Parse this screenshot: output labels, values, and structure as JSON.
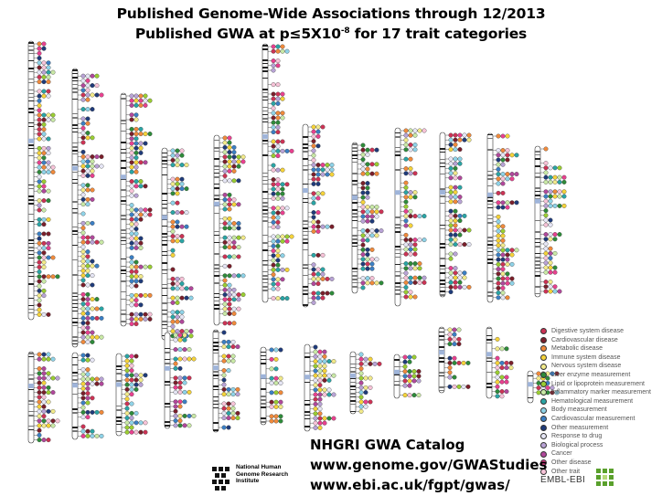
{
  "title_line1": "Published Genome-Wide Associations through 12/2013",
  "title_line2_pre": "Published GWA at p≤5X10",
  "title_line2_sup": "-8",
  "title_line2_post": " for 17 trait categories",
  "legend": [
    {
      "label": "Digestive system disease",
      "color": "#cc3355"
    },
    {
      "label": "Cardiovascular disease",
      "color": "#7a1f2b"
    },
    {
      "label": "Metabolic disease",
      "color": "#f08a3c"
    },
    {
      "label": "Immune system disease",
      "color": "#f5d33a"
    },
    {
      "label": "Nervous system disease",
      "color": "#f2ea8a"
    },
    {
      "label": "Liver enzyme measurement",
      "color": "#2e8b3a"
    },
    {
      "label": "Lipid or lipoprotein measurement",
      "color": "#9acd32"
    },
    {
      "label": "Inflammatory marker measurement",
      "color": "#c9e9a6"
    },
    {
      "label": "Hematological measurement",
      "color": "#2aa5a5"
    },
    {
      "label": "Body measurement",
      "color": "#8fd3e8"
    },
    {
      "label": "Cardiovascular measurement",
      "color": "#3b7fc4"
    },
    {
      "label": "Other measurement",
      "color": "#1f3b7a"
    },
    {
      "label": "Response to drug",
      "color": "#e6e6f5"
    },
    {
      "label": "Biological process",
      "color": "#b9a3d6"
    },
    {
      "label": "Cancer",
      "color": "#b1489b"
    },
    {
      "label": "Other disease",
      "color": "#e8418f"
    },
    {
      "label": "Other trait",
      "color": "#f7c3d8"
    }
  ],
  "catalog_lines": [
    "NHGRI GWA Catalog",
    "www.genome.gov/GWAStudies",
    "www.ebi.ac.uk/fgpt/gwas/"
  ],
  "nhgri_lines": [
    "National Human",
    "Genome Research",
    "Institute"
  ],
  "ebi_label": "EMBL-EBI",
  "icon_names": {
    "nhgri": "nhgri-logo-icon",
    "ebi": "ebi-logo-icon"
  }
}
